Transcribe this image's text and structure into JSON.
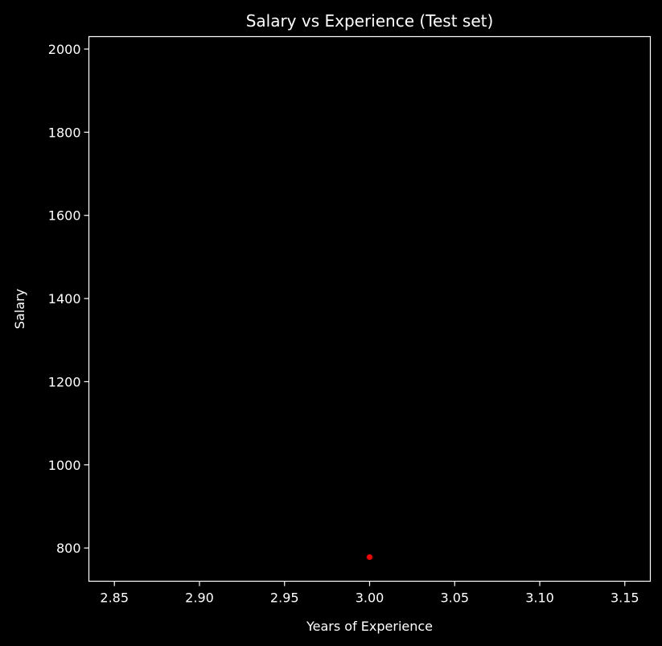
{
  "chart_data": {
    "type": "scatter",
    "title": "Salary vs Experience (Test set)",
    "xlabel": "Years of Experience",
    "ylabel": "Salary",
    "xlim": [
      2.835,
      3.165
    ],
    "ylim": [
      720,
      2030
    ],
    "xticks": [
      2.85,
      2.9,
      2.95,
      3.0,
      3.05,
      3.1,
      3.15
    ],
    "xtick_labels": [
      "2.85",
      "2.90",
      "2.95",
      "3.00",
      "3.05",
      "3.10",
      "3.15"
    ],
    "yticks": [
      800,
      1000,
      1200,
      1400,
      1600,
      1800,
      2000
    ],
    "ytick_labels": [
      "800",
      "1000",
      "1200",
      "1400",
      "1600",
      "1800",
      "2000"
    ],
    "grid": false,
    "series": [
      {
        "x": [
          3.0
        ],
        "y": [
          778
        ],
        "color": "#ff0000"
      }
    ],
    "colors": {
      "background": "#000000",
      "axes": "#ffffff",
      "text": "#ffffff"
    }
  }
}
